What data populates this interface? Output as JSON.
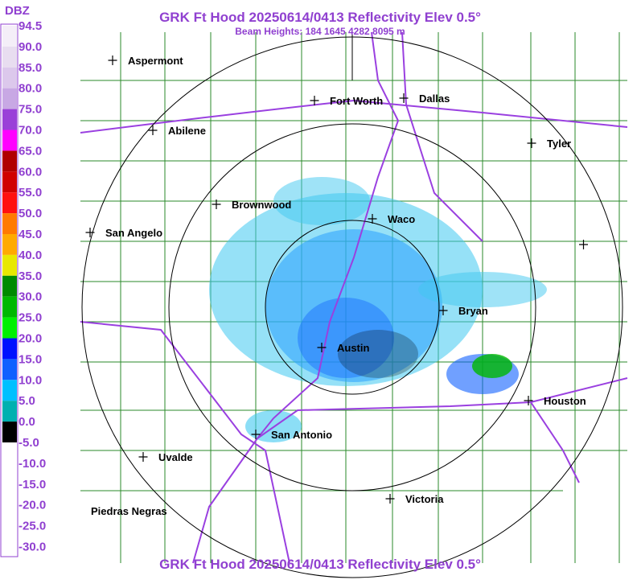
{
  "header": {
    "title": "GRK Ft Hood 20250614/0413 Reflectivity Elev 0.5°",
    "subtitle": "Beam Heights: 184 1645 4282 8095 m"
  },
  "legend": {
    "title": "DBZ",
    "items": [
      {
        "label": "94.5",
        "color": "#ffffff"
      },
      {
        "label": "90.0",
        "color": "#f4eef8"
      },
      {
        "label": "85.0",
        "color": "#e8ddf0"
      },
      {
        "label": "80.0",
        "color": "#dcc8ec"
      },
      {
        "label": "75.0",
        "color": "#c8a8e4"
      },
      {
        "label": "70.0",
        "color": "#9a40d8"
      },
      {
        "label": "65.0",
        "color": "#ff00ff"
      },
      {
        "label": "60.0",
        "color": "#b00000"
      },
      {
        "label": "55.0",
        "color": "#d00000"
      },
      {
        "label": "50.0",
        "color": "#ff1010"
      },
      {
        "label": "45.0",
        "color": "#ff7a00"
      },
      {
        "label": "40.0",
        "color": "#ffaa00"
      },
      {
        "label": "35.0",
        "color": "#e8e800"
      },
      {
        "label": "30.0",
        "color": "#008a00"
      },
      {
        "label": "25.0",
        "color": "#00b800"
      },
      {
        "label": "20.0",
        "color": "#00f000"
      },
      {
        "label": "15.0",
        "color": "#0010ff"
      },
      {
        "label": "10.0",
        "color": "#1060ff"
      },
      {
        "label": "5.0",
        "color": "#00c0ff"
      },
      {
        "label": "0.0",
        "color": "#00b0b0"
      },
      {
        "label": "-5.0",
        "color": "#000000"
      },
      {
        "label": "-10.0",
        "color": "#ffffff"
      },
      {
        "label": "-15.0",
        "color": "#ffffff"
      },
      {
        "label": "-20.0",
        "color": "#ffffff"
      },
      {
        "label": "-25.0",
        "color": "#ffffff"
      },
      {
        "label": "-30.0",
        "color": "#ffffff"
      }
    ]
  },
  "cities": [
    "Aspermont",
    "Fort Worth",
    "Dallas",
    "Abilene",
    "Tyler",
    "Brownwood",
    "Waco",
    "San Angelo",
    "Bryan",
    "Austin",
    "Houston",
    "San Antonio",
    "Uvalde",
    "Victoria",
    "Piedras Negras"
  ],
  "footer": {
    "title": "GRK Ft Hood 20250614/0413 Reflectivity Elev 0.5°"
  }
}
